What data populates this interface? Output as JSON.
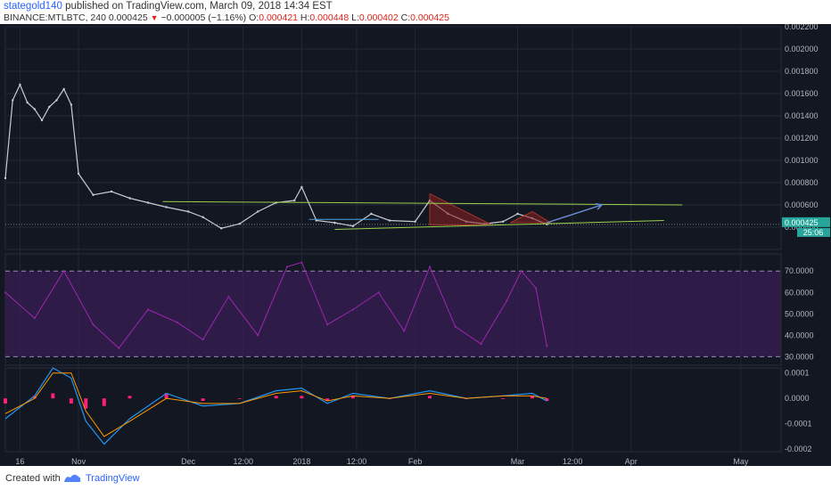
{
  "header": {
    "user": "stategold140",
    "published_text": " published on TradingView.com, March 09, 2018 14:34 EST",
    "symbol": "BINANCE:MTLBTC, 240",
    "last_price": "0.000425",
    "change": "−0.000005 (−1.16%)",
    "open_label": "O:",
    "open_value": "0.000421",
    "high_label": "H:",
    "high_value": "0.000448",
    "low_label": "L:",
    "low_value": "0.000402",
    "close_label": "C:",
    "close_value": "0.000425"
  },
  "footer": {
    "created_with": "Created with",
    "brand": "TradingView"
  },
  "colors": {
    "background": "#131722",
    "grid": "#232838",
    "candle": "#c8ccd2",
    "trend_line": "#9bd14b",
    "target_arrow": "#6d8fd8",
    "triangle": "#8b1f1f",
    "rsi_line": "#9c27b0",
    "rsi_band": "#3a1e57",
    "macd_line": "#2196f3",
    "signal_line": "#ff9800",
    "histogram": "#ff1f7a",
    "price_tag": "#26a69a"
  },
  "chart_data": [
    {
      "type": "line",
      "name": "price",
      "x": [
        "Oct 12",
        "Oct 14",
        "Oct 16",
        "Oct 18",
        "Oct 20",
        "Oct 22",
        "Oct 24",
        "Oct 26",
        "Oct 28",
        "Oct 30",
        "Nov 1",
        "Nov 5",
        "Nov 10",
        "Nov 15",
        "Nov 20",
        "Nov 25",
        "Dec 1",
        "Dec 5",
        "Dec 10",
        "Dec 15",
        "Dec 20",
        "Dec 25",
        "Dec 30",
        "Jan 1",
        "Jan 5",
        "Jan 10",
        "Jan 15",
        "Jan 20",
        "Jan 25",
        "Feb 1",
        "Feb 5",
        "Feb 10",
        "Feb 15",
        "Feb 20",
        "Feb 25",
        "Mar 1",
        "Mar 5",
        "Mar 9"
      ],
      "values": [
        0.00084,
        0.00154,
        0.00168,
        0.00152,
        0.00146,
        0.00136,
        0.00148,
        0.00154,
        0.00164,
        0.0015,
        0.00088,
        0.00069,
        0.00072,
        0.00066,
        0.00062,
        0.00058,
        0.00054,
        0.00049,
        0.00039,
        0.00043,
        0.00054,
        0.00062,
        0.00064,
        0.00076,
        0.00046,
        0.00044,
        0.00041,
        0.00052,
        0.00046,
        0.00045,
        0.00064,
        0.00052,
        0.00045,
        0.00043,
        0.00045,
        0.00052,
        0.00048,
        0.000425
      ],
      "last_value": 0.000425,
      "ylim": [
        0.0002,
        0.0022
      ],
      "y_ticks": [
        "0.002200",
        "0.002000",
        "0.001800",
        "0.001600",
        "0.001400",
        "0.001200",
        "0.001000",
        "0.000800",
        "0.000600",
        "0.000400"
      ],
      "price_tag": "0.000425",
      "countdown": "25:06",
      "grid": true,
      "annotations": {
        "upper_trend_line": {
          "start": [
            "Nov 24",
            0.00063
          ],
          "end": [
            "Apr 15",
            0.0006
          ]
        },
        "lower_trend_line": {
          "start": [
            "Jan 10",
            0.00038
          ],
          "end": [
            "Apr 10",
            0.00046
          ]
        },
        "horizontal_line": {
          "start": [
            "Jan 3",
            0.00047
          ],
          "end": [
            "Jan 22",
            0.00047
          ]
        },
        "arrow": {
          "start": [
            "Mar 9",
            0.00044
          ],
          "end": [
            "Mar 24",
            0.0006
          ]
        },
        "triangles": [
          {
            "points": [
              [
                "Feb 5",
                0.0007
              ],
              [
                "Feb 5",
                0.00042
              ],
              [
                "Feb 22",
                0.00042
              ]
            ]
          },
          {
            "points": [
              [
                "Feb 27",
                0.00044
              ],
              [
                "Mar 5",
                0.00054
              ],
              [
                "Mar 10",
                0.00044
              ]
            ]
          }
        ]
      }
    },
    {
      "type": "line",
      "name": "RSI",
      "x": [
        "Oct 12",
        "Oct 20",
        "Oct 28",
        "Nov 5",
        "Nov 12",
        "Nov 20",
        "Nov 28",
        "Dec 5",
        "Dec 12",
        "Dec 20",
        "Dec 28",
        "Jan 1",
        "Jan 8",
        "Jan 15",
        "Jan 22",
        "Jan 29",
        "Feb 5",
        "Feb 12",
        "Feb 19",
        "Feb 26",
        "Mar 2",
        "Mar 6",
        "Mar 9"
      ],
      "values": [
        60,
        48,
        70,
        45,
        34,
        52,
        46,
        38,
        58,
        40,
        72,
        74,
        45,
        52,
        60,
        42,
        72,
        44,
        36,
        56,
        70,
        62,
        35
      ],
      "ylim": [
        26,
        78
      ],
      "y_ticks": [
        "70.0000",
        "60.0000",
        "50.0000",
        "40.0000",
        "30.0000"
      ],
      "bands": [
        30,
        70
      ]
    },
    {
      "type": "bar",
      "name": "MACD",
      "x": [
        "Oct 12",
        "Oct 20",
        "Oct 25",
        "Oct 30",
        "Nov 3",
        "Nov 8",
        "Nov 15",
        "Nov 25",
        "Dec 5",
        "Dec 15",
        "Dec 25",
        "Jan 1",
        "Jan 8",
        "Jan 15",
        "Jan 25",
        "Feb 5",
        "Feb 15",
        "Feb 25",
        "Mar 5",
        "Mar 9"
      ],
      "macd": [
        -8e-05,
        1e-05,
        0.00012,
        8e-05,
        -9e-05,
        -0.00018,
        -8e-05,
        2e-05,
        -3e-05,
        -2e-05,
        3e-05,
        4e-05,
        -2e-05,
        2e-05,
        0.0,
        3e-05,
        0.0,
        1e-05,
        2e-05,
        -1e-05
      ],
      "signal": [
        -6e-05,
        0.0,
        0.0001,
        0.0001,
        -5e-05,
        -0.00015,
        -9e-05,
        0.0,
        -2e-05,
        -2e-05,
        2e-05,
        3e-05,
        -1e-05,
        1e-05,
        0.0,
        2e-05,
        0.0,
        1e-05,
        1e-05,
        0.0
      ],
      "histogram": [
        -2e-05,
        1e-05,
        2e-05,
        -2e-05,
        -4e-05,
        -3e-05,
        1e-05,
        2e-05,
        -1e-05,
        0.0,
        1e-05,
        1e-05,
        -1e-05,
        1e-05,
        0.0,
        1e-05,
        0.0,
        0.0,
        1e-05,
        -1e-05
      ],
      "ylim": [
        -0.00021,
        0.00012
      ],
      "y_ticks": [
        "0.0001",
        "0.0000",
        "-0.0001",
        "-0.0002"
      ]
    }
  ],
  "x_axis": {
    "labels": [
      {
        "text": "16",
        "date": "Oct 16"
      },
      {
        "text": "Nov",
        "date": "Nov 1"
      },
      {
        "text": "Dec",
        "date": "Dec 1"
      },
      {
        "text": "12:00",
        "date": "Dec 16"
      },
      {
        "text": "2018",
        "date": "Jan 1"
      },
      {
        "text": "12:00",
        "date": "Jan 16"
      },
      {
        "text": "Feb",
        "date": "Feb 1"
      },
      {
        "text": "Mar",
        "date": "Mar 1"
      },
      {
        "text": "12:00",
        "date": "Mar 16"
      },
      {
        "text": "Apr",
        "date": "Apr 1"
      },
      {
        "text": "May",
        "date": "May 1"
      }
    ]
  }
}
